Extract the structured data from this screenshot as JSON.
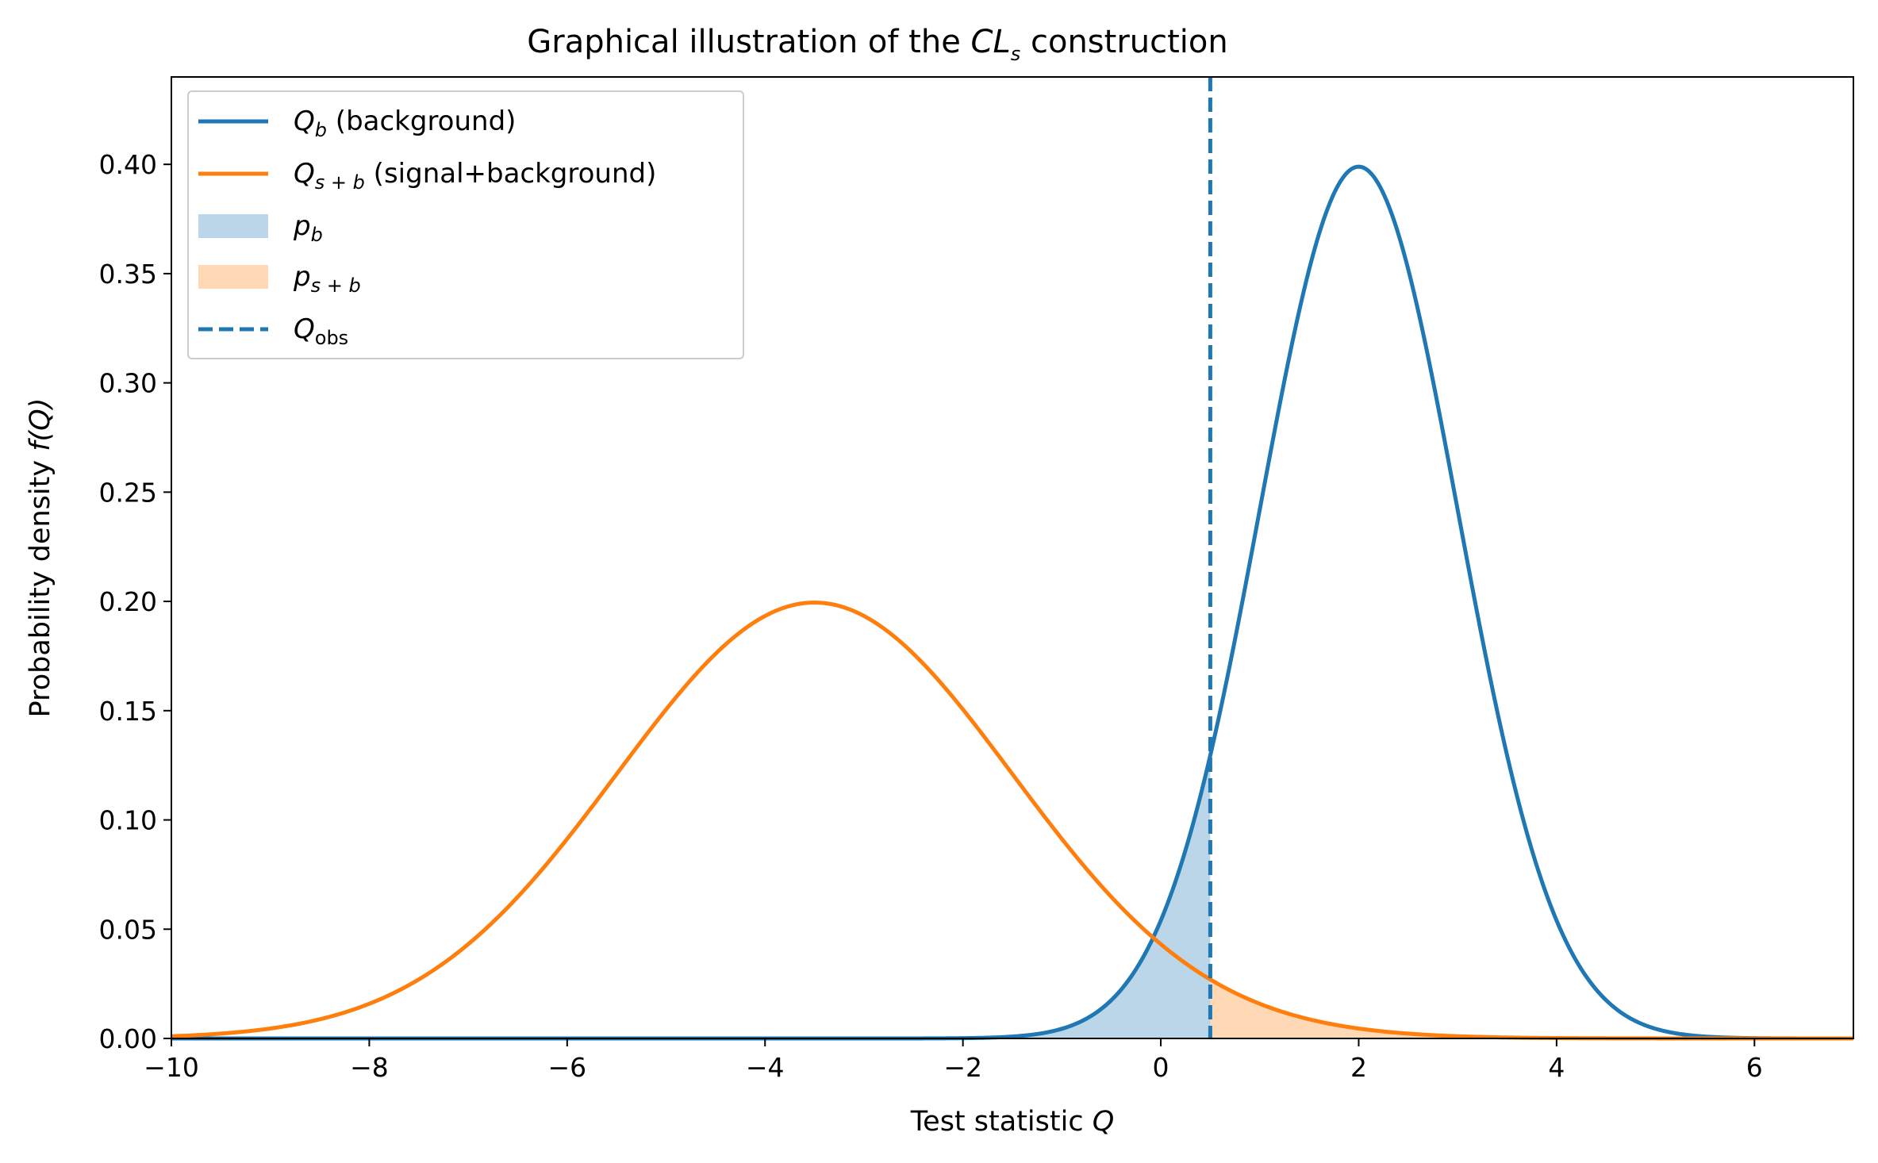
{
  "chart_data": {
    "type": "line",
    "title_parts": {
      "main": "Graphical illustration of the ",
      "symbol": "CL",
      "subscript": "s",
      "suffix": " construction"
    },
    "xlabel_parts": {
      "main": "Test statistic ",
      "var": "Q"
    },
    "ylabel_parts": {
      "main": "Probability density ",
      "var": "f(Q)"
    },
    "xlim": [
      -10,
      7
    ],
    "ylim": [
      0,
      0.44
    ],
    "xticks": [
      -10,
      -8,
      -6,
      -4,
      -2,
      0,
      2,
      4,
      6
    ],
    "xtick_labels": [
      "−10",
      "−8",
      "−6",
      "−4",
      "−2",
      "0",
      "2",
      "4",
      "6"
    ],
    "yticks": [
      0.0,
      0.05,
      0.1,
      0.15,
      0.2,
      0.25,
      0.3,
      0.35,
      0.4
    ],
    "ytick_labels": [
      "0.00",
      "0.05",
      "0.10",
      "0.15",
      "0.20",
      "0.25",
      "0.30",
      "0.35",
      "0.40"
    ],
    "grid": false,
    "legend_position": "upper-left",
    "series": [
      {
        "name_parts": {
          "var": "Q",
          "sub": "b",
          "text": " (background)"
        },
        "kind": "gaussian",
        "mean": 2.0,
        "sigma": 1.0,
        "color": "#1f77b4"
      },
      {
        "name_parts": {
          "var": "Q",
          "sub": "s + b",
          "text": " (signal+background)"
        },
        "kind": "gaussian",
        "mean": -3.5,
        "sigma": 2.0,
        "color": "#ff7f0e"
      }
    ],
    "fills": [
      {
        "name_parts": {
          "var": "p",
          "sub": "b"
        },
        "series_index": 0,
        "x_from": -10,
        "x_to": 0.5,
        "color": "#1f77b4",
        "alpha": 0.3
      },
      {
        "name_parts": {
          "var": "p",
          "sub": "s + b"
        },
        "series_index": 1,
        "x_from": 0.5,
        "x_to": 7,
        "color": "#ff7f0e",
        "alpha": 0.3
      }
    ],
    "vline": {
      "name_parts": {
        "var": "Q",
        "sub": "obs"
      },
      "x": 0.5,
      "color": "#1f77b4",
      "style": "dashed"
    }
  }
}
